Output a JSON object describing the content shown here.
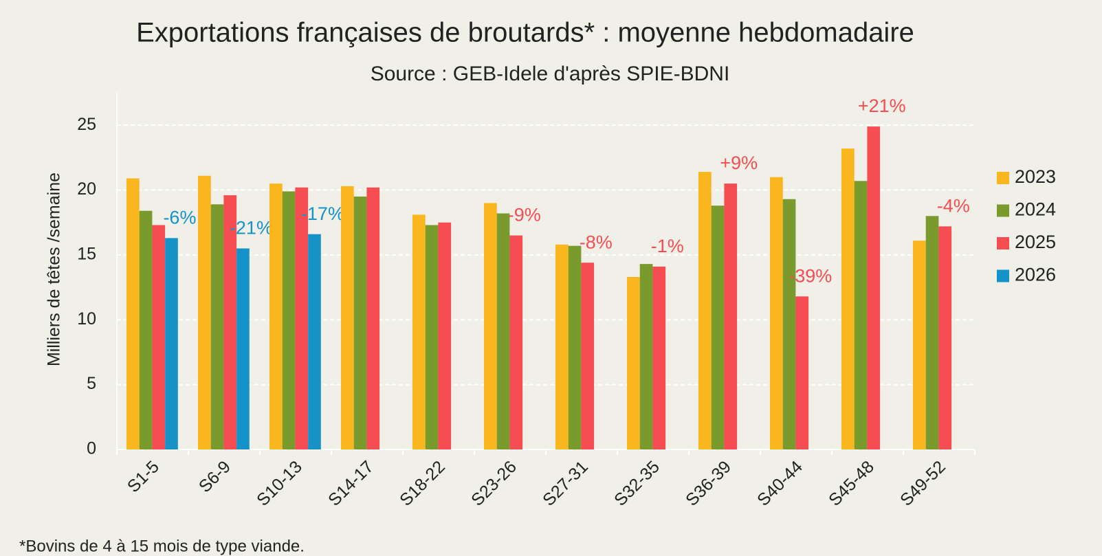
{
  "chart_data": {
    "type": "bar",
    "title": "Exportations françaises de broutards* : moyenne hebdomadaire",
    "subtitle": "Source : GEB-Idele d'après SPIE-BDNI",
    "y_label": "Milliers de têtes /semaine",
    "footnote": "*Bovins de 4 à 15 mois de type viande.",
    "categories": [
      "S1-5",
      "S6-9",
      "S10-13",
      "S14-17",
      "S18-22",
      "S23-26",
      "S27-31",
      "S32-35",
      "S36-39",
      "S40-44",
      "S45-48",
      "S49-52"
    ],
    "series": [
      {
        "name": "2023",
        "color": "#fbb61d",
        "values": [
          20.9,
          21.1,
          20.5,
          20.3,
          18.1,
          19.0,
          15.8,
          13.3,
          21.4,
          21.0,
          23.2,
          16.1
        ]
      },
      {
        "name": "2024",
        "color": "#7a9a2e",
        "values": [
          18.4,
          18.9,
          19.9,
          19.5,
          17.3,
          18.2,
          15.7,
          14.3,
          18.8,
          19.3,
          20.7,
          18.0
        ]
      },
      {
        "name": "2025",
        "color": "#f54d52",
        "values": [
          17.3,
          19.6,
          20.2,
          20.2,
          17.5,
          16.5,
          14.4,
          14.1,
          20.5,
          11.8,
          24.9,
          17.2
        ]
      },
      {
        "name": "2026",
        "color": "#1593c9",
        "values": [
          16.3,
          15.5,
          16.6,
          null,
          null,
          null,
          null,
          null,
          null,
          null,
          null,
          null
        ]
      }
    ],
    "annotations": [
      "-6%",
      "-21%",
      "-17%",
      null,
      null,
      "-9%",
      "-8%",
      "-1%",
      "+9%",
      "-39%",
      "+21%",
      "-4%"
    ],
    "ylim": [
      0,
      27.5
    ],
    "yticks": [
      0,
      5,
      10,
      15,
      20,
      25
    ],
    "grid": true,
    "legend": "right"
  }
}
